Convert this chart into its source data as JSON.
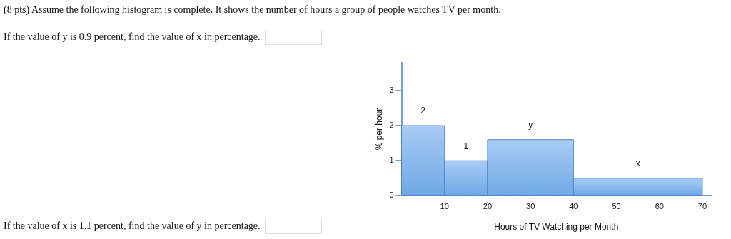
{
  "chart_data": {
    "type": "histogram",
    "title": "(8 pts) Assume the following histogram is complete. It shows the number of hours a group of people watches TV per month.",
    "annotations": [
      "If the value of y is 0.9 percent, find the value of x in percentage.",
      "If the value of x is 1.1 percent, find the value of y in percentage."
    ],
    "xlabel": "Hours of TV Watching per Month",
    "ylabel": "% per hour",
    "bins": [
      0,
      10,
      20,
      40,
      70
    ],
    "values": [
      2,
      1,
      1.6,
      0.5
    ],
    "value_labels": [
      "2",
      "1",
      "y",
      "x"
    ],
    "color": "#6fa8e6",
    "xlim": [
      0,
      72
    ],
    "ylim": [
      0,
      3.8
    ],
    "xticks": [
      10,
      20,
      30,
      40,
      50,
      60,
      70
    ],
    "yticks": [
      0,
      1,
      2,
      3
    ],
    "grid": false,
    "legend": false
  }
}
